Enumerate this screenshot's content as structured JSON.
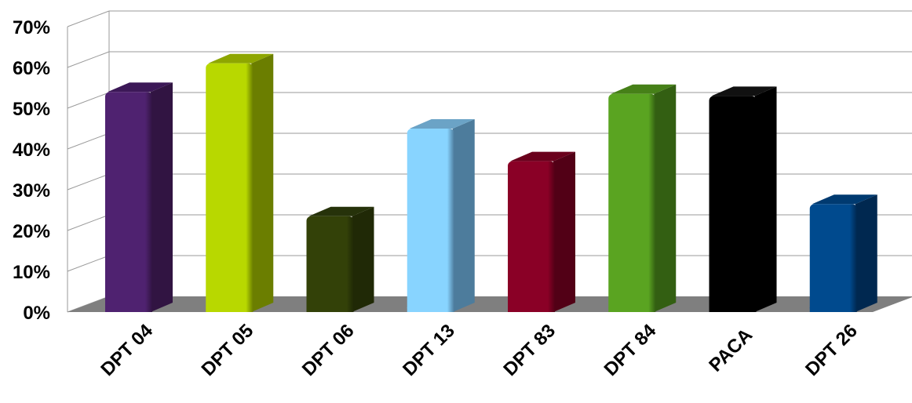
{
  "chart_data": {
    "type": "bar",
    "title": "",
    "xlabel": "",
    "ylabel": "",
    "categories": [
      "DPT 04",
      "DPT 05",
      "DPT 06",
      "DPT 13",
      "DPT 83",
      "DPT 84",
      "PACA",
      "DPT 26"
    ],
    "values": [
      54,
      61,
      23.5,
      45,
      37,
      53.5,
      53,
      26.5
    ],
    "colors": [
      "#4f2270",
      "#b8d800",
      "#334108",
      "#88d4ff",
      "#8a0026",
      "#5aa421",
      "#000000",
      "#004a8e"
    ],
    "side_colors": [
      "#311442",
      "#6b7e00",
      "#202906",
      "#4d7c9c",
      "#520016",
      "#335f12",
      "#000000",
      "#002850"
    ],
    "top_colors": [
      "#3c1857",
      "#8ea600",
      "#26320a",
      "#6ba3c6",
      "#6a001c",
      "#468018",
      "#111111",
      "#003a70"
    ],
    "ylim": [
      0,
      70
    ],
    "yticks": [
      "0%",
      "10%",
      "20%",
      "30%",
      "40%",
      "50%",
      "60%",
      "70%"
    ],
    "grid": true,
    "legend": "none"
  }
}
